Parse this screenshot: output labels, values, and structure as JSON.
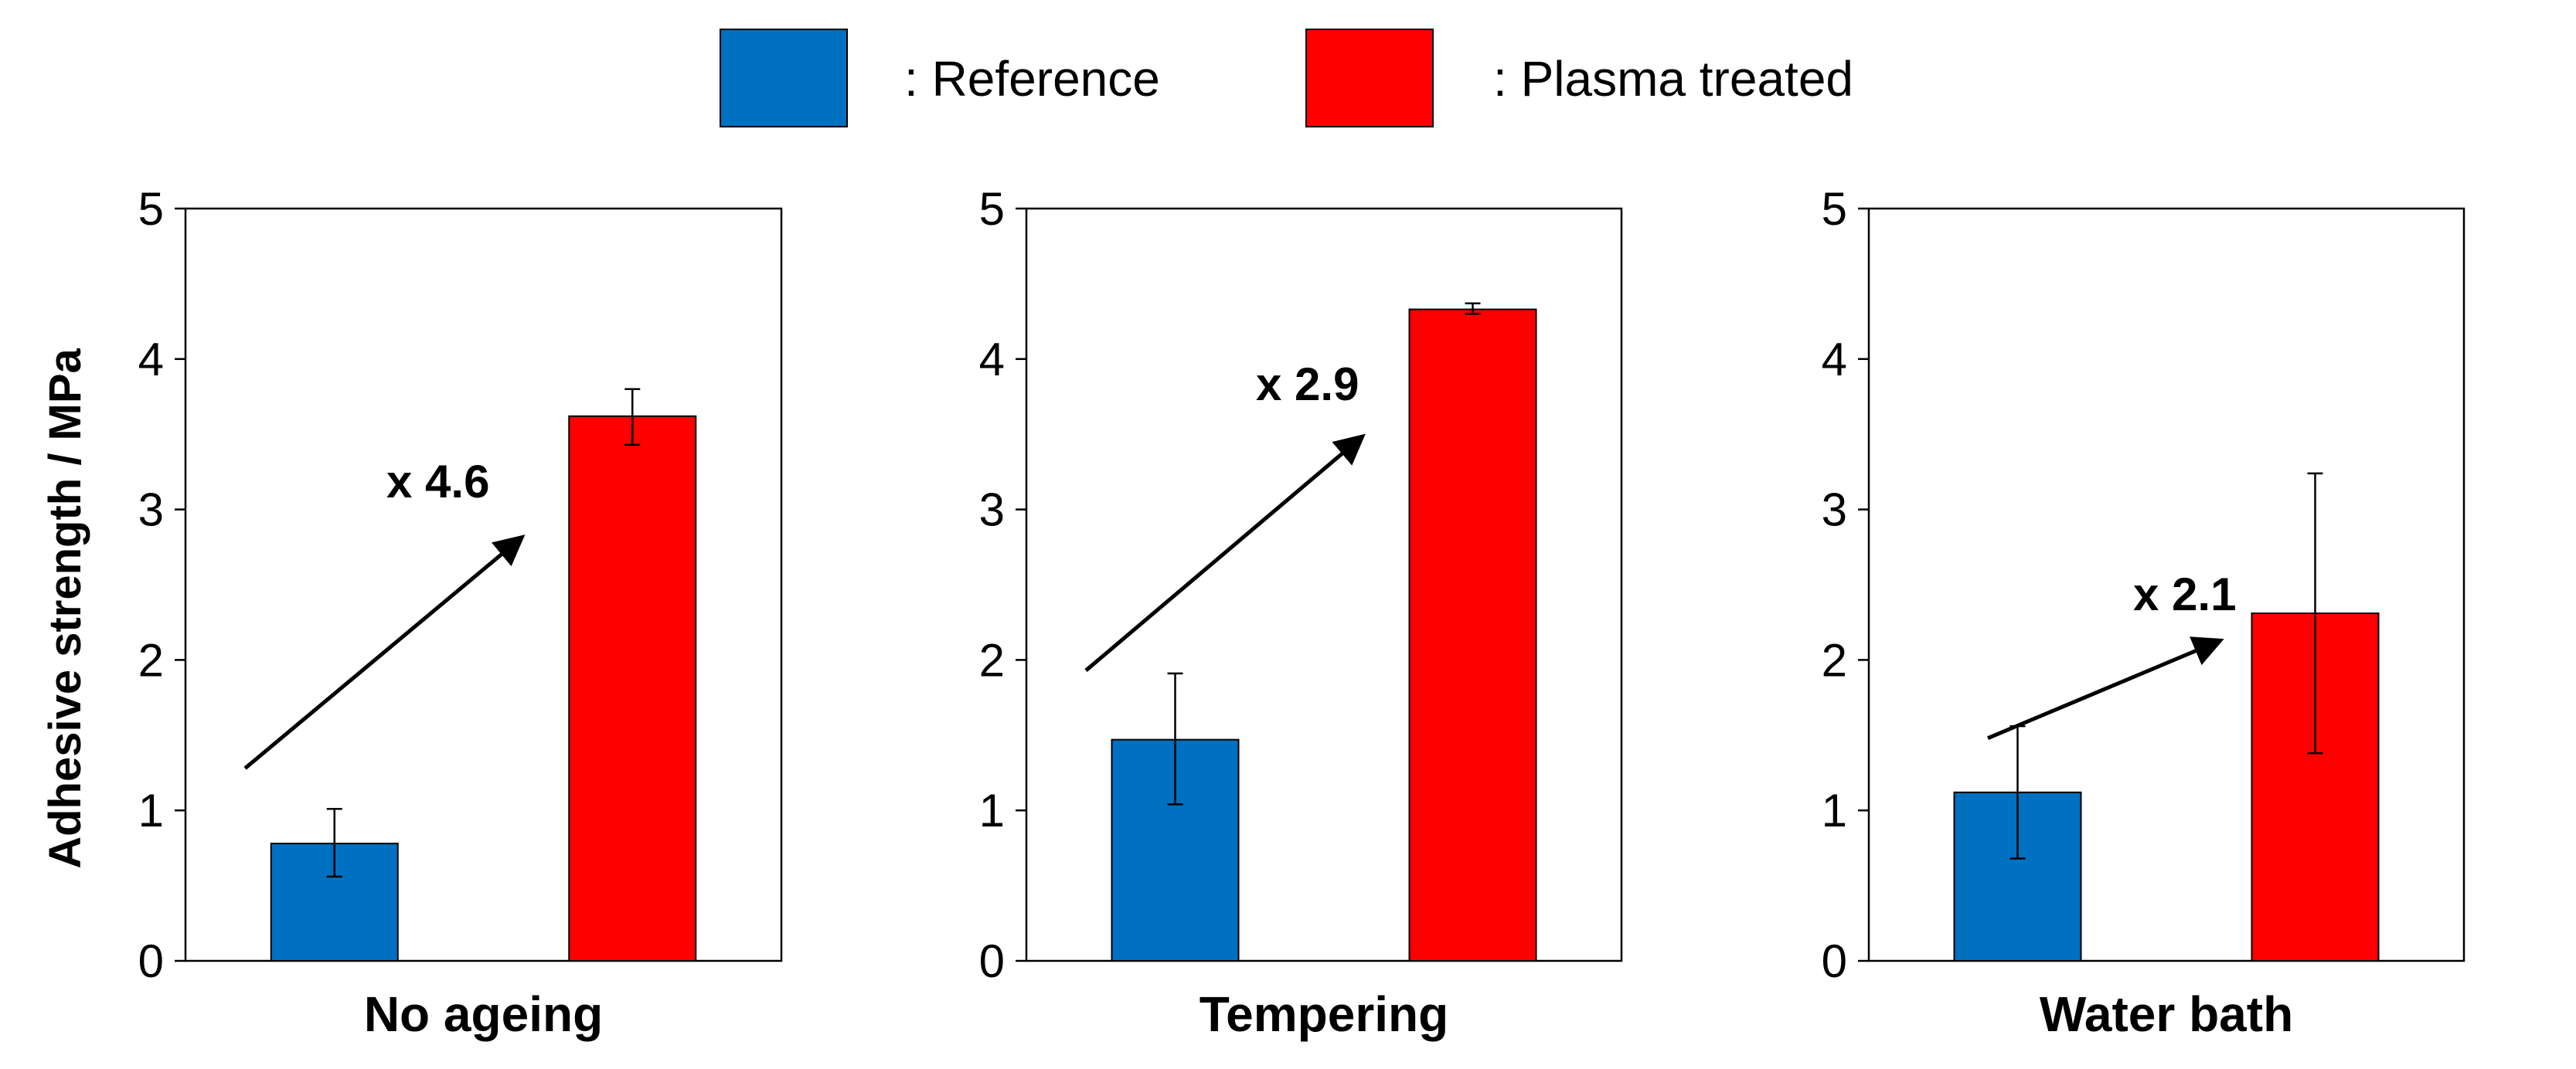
{
  "legend": {
    "items": [
      {
        "label": ": Reference",
        "color": "#0070C0"
      },
      {
        "label": ": Plasma treated",
        "color": "#FF0000"
      }
    ]
  },
  "ylabel": "Adhesive strength / MPa",
  "chart_data": [
    {
      "type": "bar",
      "xlabel": "No ageing",
      "ylabel": "Adhesive strength / MPa",
      "ylim": [
        0,
        5
      ],
      "yticks": [
        "0",
        "1",
        "2",
        "3",
        "4",
        "5"
      ],
      "series": [
        {
          "name": ": Reference",
          "value": 0.78,
          "error": [
            0.56,
            1.01
          ]
        },
        {
          "name": ": Plasma treated",
          "value": 3.62,
          "error": [
            3.43,
            3.8
          ]
        }
      ],
      "annotation": {
        "text": "x 4.6",
        "from": [
          0.2,
          1.28
        ],
        "to": [
          1.12,
          2.8
        ]
      }
    },
    {
      "type": "bar",
      "xlabel": "Tempering",
      "ylabel": "Adhesive strength / MPa",
      "ylim": [
        0,
        5
      ],
      "yticks": [
        "0",
        "1",
        "2",
        "3",
        "4",
        "5"
      ],
      "series": [
        {
          "name": ": Reference",
          "value": 1.47,
          "error": [
            1.04,
            1.91
          ]
        },
        {
          "name": ": Plasma treated",
          "value": 4.33,
          "error": [
            4.3,
            4.37
          ]
        }
      ],
      "annotation": {
        "text": "x 2.9",
        "from": [
          0.2,
          1.93
        ],
        "to": [
          1.12,
          3.47
        ]
      }
    },
    {
      "type": "bar",
      "xlabel": "Water bath",
      "ylabel": "Adhesive strength / MPa",
      "ylim": [
        0,
        5
      ],
      "yticks": [
        "0",
        "1",
        "2",
        "3",
        "4",
        "5"
      ],
      "series": [
        {
          "name": ": Reference",
          "value": 1.12,
          "error": [
            0.68,
            1.56
          ]
        },
        {
          "name": ": Plasma treated",
          "value": 2.31,
          "error": [
            1.38,
            3.24
          ]
        }
      ],
      "annotation": {
        "text": "x 2.1",
        "from": [
          0.4,
          1.48
        ],
        "to": [
          1.17,
          2.12
        ]
      }
    }
  ]
}
